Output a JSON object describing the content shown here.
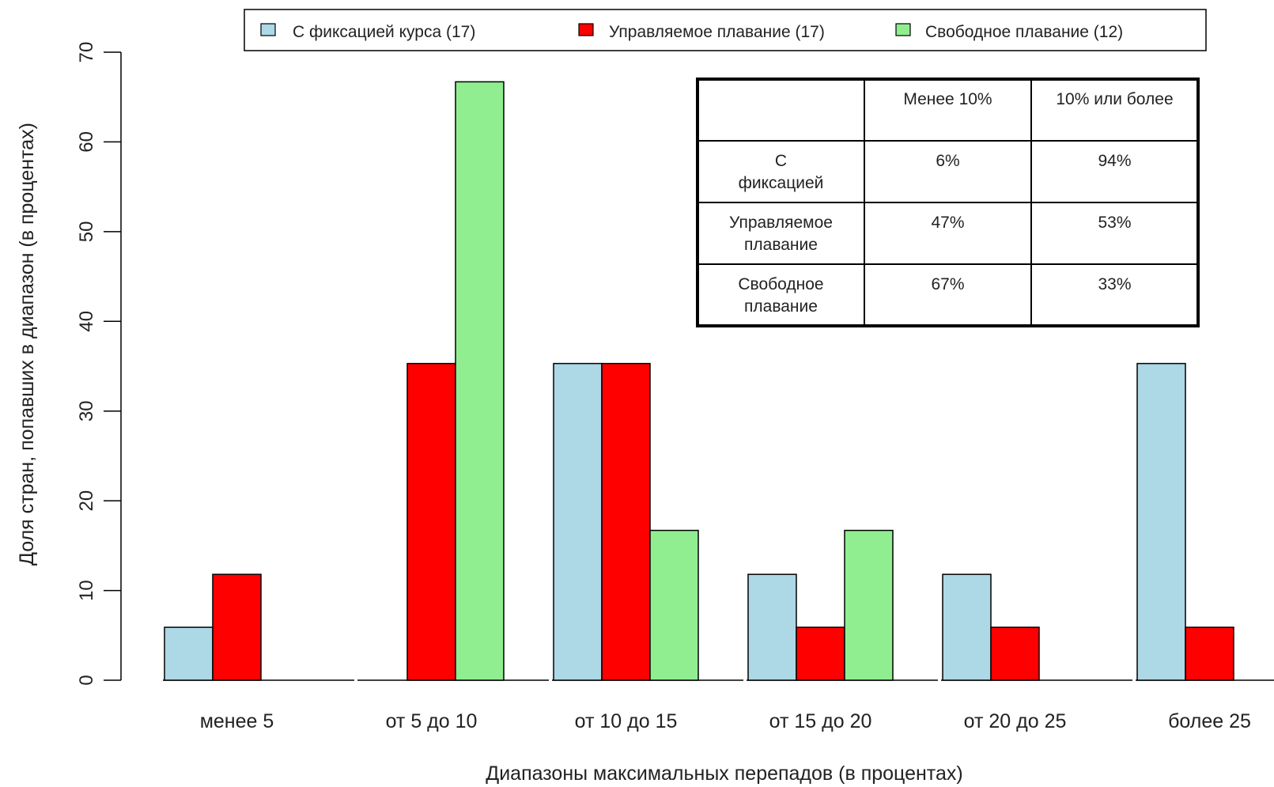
{
  "chart_data": {
    "type": "bar",
    "title": "",
    "xlabel": "Диапазоны максимальных перепадов (в процентах)",
    "ylabel": "Доля стран, попавших в диапазон (в процентах)",
    "ylim": [
      0,
      70
    ],
    "yticks": [
      "0",
      "10",
      "20",
      "30",
      "40",
      "50",
      "60",
      "70"
    ],
    "categories": [
      "менее 5",
      "от 5 до 10",
      "от 10 до 15",
      "от 15 до 20",
      "от 20 до 25",
      "более 25"
    ],
    "series": [
      {
        "name": "С фиксацией курса (17)",
        "color": "#add8e6",
        "values": [
          5.9,
          0,
          35.3,
          11.8,
          11.8,
          35.3
        ]
      },
      {
        "name": "Управляемое плавание (17)",
        "color": "#ff0000",
        "values": [
          11.8,
          35.3,
          35.3,
          5.9,
          5.9,
          5.9
        ]
      },
      {
        "name": "Свободное плавание (12)",
        "color": "#90ee90",
        "values": [
          0,
          66.7,
          16.7,
          16.7,
          0,
          0
        ]
      }
    ],
    "legend_position": "top",
    "grid": false,
    "inset_table": {
      "header": [
        "",
        "Менее 10%",
        "10% или более"
      ],
      "rows": [
        [
          "С фиксацией",
          "6%",
          "94%"
        ],
        [
          "Управляемое плавание",
          "47%",
          "53%"
        ],
        [
          "Свободное плавание",
          "67%",
          "33%"
        ]
      ]
    }
  }
}
